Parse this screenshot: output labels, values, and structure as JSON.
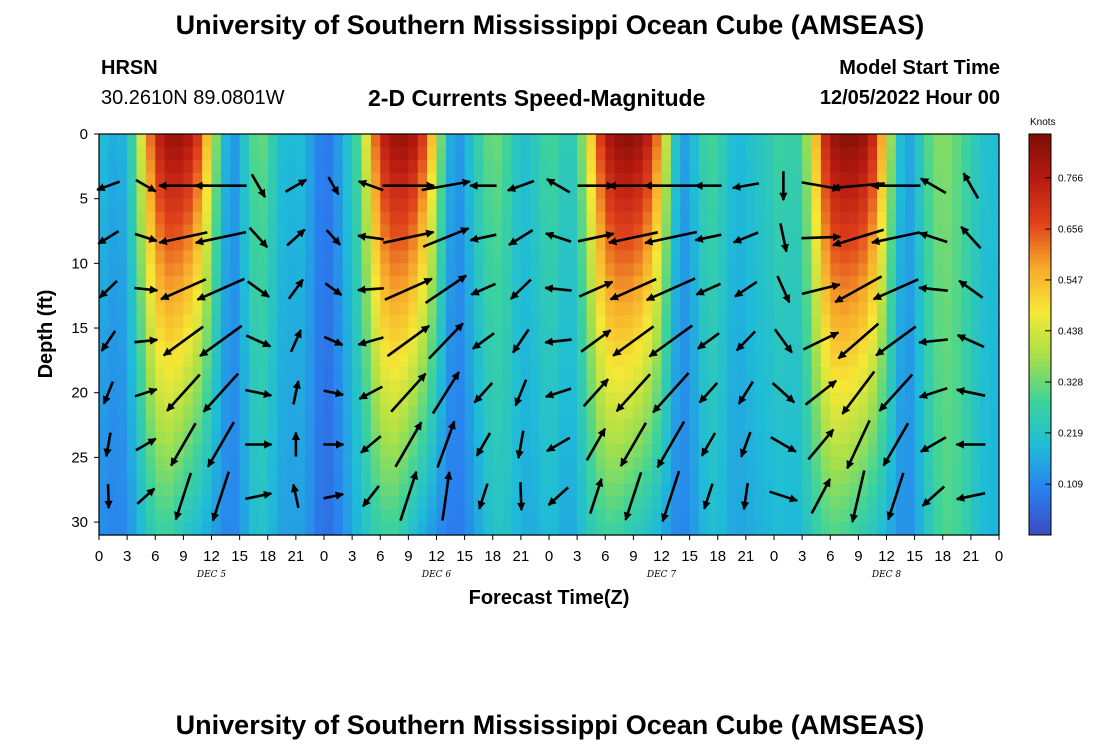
{
  "page": {
    "title_top": "University of Southern Mississippi Ocean Cube (AMSEAS)",
    "station": "HRSN",
    "coords": "30.2610N  89.0801W",
    "plot_title": "2-D Currents Speed-Magnitude",
    "model_start_label": "Model Start Time",
    "model_start_value": "12/05/2022 Hour 00",
    "title_bottom": "University of Southern Mississippi Ocean Cube (AMSEAS)"
  },
  "colors": {
    "scale": [
      "#3b4cc0",
      "#2a7ff0",
      "#1fbcd8",
      "#3ed39a",
      "#a5e04a",
      "#f6e836",
      "#f7a92b",
      "#e0421c",
      "#b51a0f",
      "#7f0e05"
    ],
    "arrow": "#000000"
  },
  "chart_data": {
    "type": "heatmap",
    "title": "2-D Currents Speed-Magnitude",
    "xlabel": "Forecast Time(Z)",
    "ylabel": "Depth (ft)",
    "x_ticks": [
      "0",
      "3",
      "6",
      "9",
      "12",
      "15",
      "18",
      "21",
      "0",
      "3",
      "6",
      "9",
      "12",
      "15",
      "18",
      "21",
      "0",
      "3",
      "6",
      "9",
      "12",
      "15",
      "18",
      "21",
      "0",
      "3",
      "6",
      "9",
      "12",
      "15",
      "18",
      "21",
      "0"
    ],
    "date_labels": [
      "DEC 5",
      "DEC 6",
      "DEC 7",
      "DEC 8"
    ],
    "y_ticks": [
      "0",
      "5",
      "10",
      "15",
      "20",
      "25",
      "30"
    ],
    "ylim": [
      0,
      31
    ],
    "xlim_hours": [
      0,
      96
    ],
    "colorbar": {
      "label": "Knots",
      "ticks": [
        "0.766",
        "0.656",
        "0.547",
        "0.438",
        "0.328",
        "0.219",
        "0.109"
      ],
      "range": [
        0.0,
        0.86
      ]
    },
    "speed_profile_hours": [
      0,
      1,
      2,
      3,
      4,
      5,
      6,
      7,
      8,
      9,
      10,
      11,
      12,
      13,
      14,
      15,
      16,
      17,
      18,
      19,
      20,
      21,
      22,
      23,
      24,
      25,
      26,
      27,
      28,
      29,
      30,
      31,
      32,
      33,
      34,
      35,
      36,
      37,
      38,
      39,
      40,
      41,
      42,
      43,
      44,
      45,
      46,
      47,
      48,
      49,
      50,
      51,
      52,
      53,
      54,
      55,
      56,
      57,
      58,
      59,
      60,
      61,
      62,
      63,
      64,
      65,
      66,
      67,
      68,
      69,
      70,
      71,
      72,
      73,
      74,
      75,
      76,
      77,
      78,
      79,
      80,
      81,
      82,
      83,
      84,
      85,
      86,
      87,
      88,
      89,
      90,
      91,
      92,
      93,
      94,
      95,
      96
    ],
    "speed_surface_knots": [
      0.21,
      0.18,
      0.16,
      0.2,
      0.34,
      0.55,
      0.72,
      0.8,
      0.82,
      0.81,
      0.76,
      0.65,
      0.45,
      0.25,
      0.12,
      0.16,
      0.28,
      0.34,
      0.3,
      0.22,
      0.18,
      0.2,
      0.19,
      0.12,
      0.08,
      0.1,
      0.18,
      0.24,
      0.34,
      0.56,
      0.72,
      0.8,
      0.82,
      0.82,
      0.76,
      0.64,
      0.45,
      0.22,
      0.12,
      0.16,
      0.24,
      0.3,
      0.34,
      0.32,
      0.26,
      0.2,
      0.22,
      0.26,
      0.3,
      0.28,
      0.22,
      0.28,
      0.42,
      0.62,
      0.76,
      0.82,
      0.84,
      0.84,
      0.8,
      0.72,
      0.55,
      0.3,
      0.14,
      0.16,
      0.24,
      0.3,
      0.28,
      0.22,
      0.18,
      0.2,
      0.22,
      0.24,
      0.26,
      0.3,
      0.24,
      0.3,
      0.44,
      0.66,
      0.8,
      0.84,
      0.85,
      0.84,
      0.8,
      0.68,
      0.48,
      0.26,
      0.14,
      0.18,
      0.28,
      0.34,
      0.36,
      0.34,
      0.3,
      0.26,
      0.22,
      0.2,
      0.2
    ],
    "speed_bottom_knots": [
      0.12,
      0.11,
      0.1,
      0.12,
      0.16,
      0.22,
      0.26,
      0.28,
      0.26,
      0.22,
      0.2,
      0.18,
      0.15,
      0.12,
      0.1,
      0.12,
      0.18,
      0.22,
      0.2,
      0.16,
      0.14,
      0.15,
      0.14,
      0.1,
      0.06,
      0.08,
      0.12,
      0.16,
      0.2,
      0.24,
      0.27,
      0.28,
      0.26,
      0.22,
      0.18,
      0.15,
      0.12,
      0.1,
      0.08,
      0.1,
      0.14,
      0.18,
      0.22,
      0.22,
      0.2,
      0.17,
      0.16,
      0.18,
      0.2,
      0.18,
      0.15,
      0.18,
      0.22,
      0.26,
      0.28,
      0.28,
      0.26,
      0.24,
      0.22,
      0.2,
      0.17,
      0.13,
      0.1,
      0.12,
      0.16,
      0.2,
      0.2,
      0.17,
      0.15,
      0.16,
      0.17,
      0.18,
      0.18,
      0.2,
      0.17,
      0.2,
      0.24,
      0.28,
      0.3,
      0.3,
      0.28,
      0.26,
      0.24,
      0.21,
      0.18,
      0.14,
      0.11,
      0.14,
      0.2,
      0.26,
      0.3,
      0.3,
      0.28,
      0.24,
      0.2,
      0.18,
      0.18
    ],
    "arrow_depths_ft": [
      4,
      8,
      12,
      16,
      20,
      24,
      28
    ],
    "arrow_hours": [
      1,
      5,
      9,
      13,
      17,
      21,
      25,
      29,
      33,
      37,
      41,
      45,
      49,
      53,
      57,
      61,
      65,
      69,
      73,
      77,
      81,
      85,
      89,
      93
    ],
    "arrow_direction_deg": [
      200,
      330,
      180,
      180,
      300,
      30,
      300,
      160,
      0,
      10,
      180,
      200,
      150,
      0,
      180,
      180,
      180,
      190,
      270,
      350,
      185,
      180,
      150,
      120
    ],
    "arrow_speed_knots": [
      0.2,
      0.18,
      0.7,
      0.75,
      0.25,
      0.2,
      0.12,
      0.24,
      0.75,
      0.7,
      0.25,
      0.28,
      0.25,
      0.45,
      0.72,
      0.78,
      0.25,
      0.25,
      0.3,
      0.5,
      0.78,
      0.7,
      0.3,
      0.3
    ]
  }
}
